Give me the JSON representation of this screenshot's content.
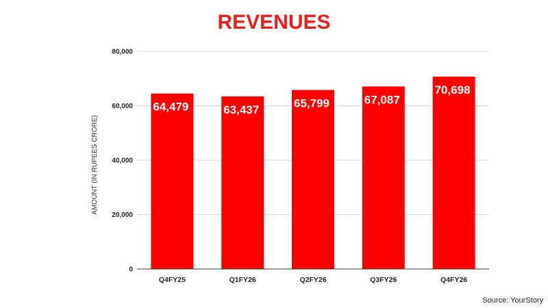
{
  "chart_data": {
    "type": "bar",
    "title": "REVENUES",
    "ylabel": "AMOUNT (IN RUPEES CRORE)",
    "xlabel": "",
    "categories": [
      "Q4FY25",
      "Q1FY26",
      "Q2FY26",
      "Q3FY26",
      "Q4FY26"
    ],
    "values": [
      64479,
      63437,
      65799,
      67087,
      70698
    ],
    "data_labels": [
      "64,479",
      "63,437",
      "65,799",
      "67,087",
      "70,698"
    ],
    "ylim": [
      0,
      80000
    ],
    "yticks": [
      0,
      20000,
      40000,
      60000,
      80000
    ],
    "ytick_labels": [
      "0",
      "20,000",
      "40,000",
      "60,000",
      "80,000"
    ],
    "grid": true,
    "bar_color": "#ff0000",
    "title_color": "#ee1c1c"
  },
  "source": "Source: YourStory"
}
